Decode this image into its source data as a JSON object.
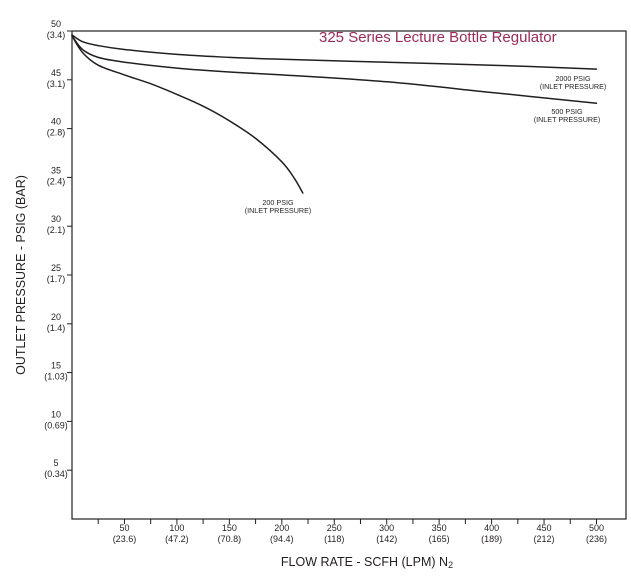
{
  "chart_data": {
    "type": "line",
    "title": "325 Series Lecture Bottle Regulator",
    "xlabel": "FLOW RATE - SCFH (LPM) N",
    "xlabel_subscript": "2",
    "ylabel": "OUTLET PRESSURE - PSIG (BAR)",
    "xlim": [
      0,
      525
    ],
    "ylim": [
      0,
      51
    ],
    "grid": false,
    "x_ticks": [
      {
        "value": 50,
        "label": "50",
        "sublabel": "(23.6)"
      },
      {
        "value": 100,
        "label": "100",
        "sublabel": "(47.2)"
      },
      {
        "value": 150,
        "label": "150",
        "sublabel": "(70.8)"
      },
      {
        "value": 200,
        "label": "200",
        "sublabel": "(94.4)"
      },
      {
        "value": 250,
        "label": "250",
        "sublabel": "(118)"
      },
      {
        "value": 300,
        "label": "300",
        "sublabel": "(142)"
      },
      {
        "value": 350,
        "label": "350",
        "sublabel": "(165)"
      },
      {
        "value": 400,
        "label": "400",
        "sublabel": "(189)"
      },
      {
        "value": 450,
        "label": "450",
        "sublabel": "(212)"
      },
      {
        "value": 500,
        "label": "500",
        "sublabel": "(236)"
      }
    ],
    "y_ticks": [
      {
        "value": 5,
        "label": "5",
        "sublabel": "(0.34)"
      },
      {
        "value": 10,
        "label": "10",
        "sublabel": "(0.69)"
      },
      {
        "value": 15,
        "label": "15",
        "sublabel": "(1.03)"
      },
      {
        "value": 20,
        "label": "20",
        "sublabel": "(1.4)"
      },
      {
        "value": 25,
        "label": "25",
        "sublabel": "(1.7)"
      },
      {
        "value": 30,
        "label": "30",
        "sublabel": "(2.1)"
      },
      {
        "value": 35,
        "label": "35",
        "sublabel": "(2.4)"
      },
      {
        "value": 40,
        "label": "40",
        "sublabel": "(2.8)"
      },
      {
        "value": 45,
        "label": "45",
        "sublabel": "(3.1)"
      },
      {
        "value": 50,
        "label": "50",
        "sublabel": "(3.4)"
      }
    ],
    "series": [
      {
        "label_line1": "2000 PSIG",
        "label_line2": "(INLET PRESSURE)",
        "x": [
          0,
          10,
          25,
          50,
          100,
          150,
          200,
          300,
          400,
          500
        ],
        "y": [
          49.6,
          48.9,
          48.5,
          48.1,
          47.6,
          47.3,
          47.1,
          46.8,
          46.5,
          46.1
        ]
      },
      {
        "label_line1": "500 PSIG",
        "label_line2": "(INLET PRESSURE)",
        "x": [
          0,
          10,
          25,
          50,
          100,
          150,
          200,
          300,
          400,
          500
        ],
        "y": [
          49.5,
          48.1,
          47.3,
          46.8,
          46.2,
          45.8,
          45.5,
          44.8,
          43.7,
          42.6
        ]
      },
      {
        "label_line1": "200 PSIG",
        "label_line2": "(INLET PRESSURE)",
        "x": [
          0,
          10,
          25,
          50,
          75,
          100,
          125,
          150,
          175,
          200,
          212,
          220
        ],
        "y": [
          49.5,
          47.8,
          46.5,
          45.5,
          44.6,
          43.5,
          42.3,
          40.8,
          39.0,
          36.6,
          34.9,
          33.4
        ]
      }
    ]
  }
}
